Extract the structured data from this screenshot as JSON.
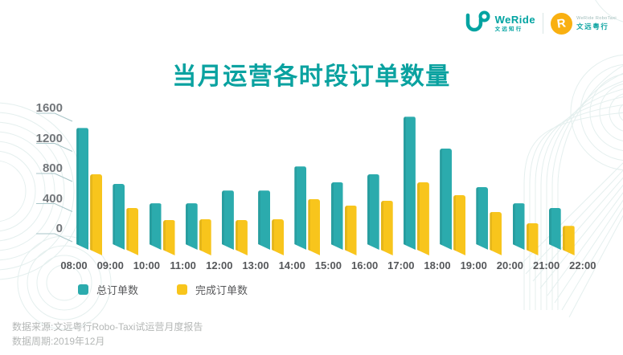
{
  "header": {
    "weride_logo": {
      "name": "WeRide",
      "cn": "文远知行"
    },
    "robotaxi_logo": {
      "monogram": "R",
      "line1": "WeRide RoboTaxi",
      "cn": "文远粤行"
    }
  },
  "title": "当月运营各时段订单数量",
  "chart_data": {
    "type": "bar",
    "title": "当月运营各时段订单数量",
    "note": "each pair of bars spans the hour between consecutive boundary labels; stylized 3D ppt bars",
    "x_boundary_labels": [
      "08:00",
      "09:00",
      "10:00",
      "11:00",
      "12:00",
      "13:00",
      "14:00",
      "15:00",
      "16:00",
      "17:00",
      "18:00",
      "19:00",
      "20:00",
      "21:00",
      "22:00"
    ],
    "series": [
      {
        "name": "总订单数",
        "color": "#2babad",
        "values": [
          1340,
          600,
          340,
          340,
          510,
          510,
          830,
          620,
          730,
          1490,
          1070,
          560,
          340,
          280
        ]
      },
      {
        "name": "完成订单数",
        "color": "#f8c51c",
        "values": [
          730,
          280,
          120,
          130,
          120,
          130,
          395,
          310,
          375,
          620,
          450,
          225,
          80,
          40
        ]
      }
    ],
    "yticks": [
      0,
      400,
      800,
      1200,
      1600
    ],
    "ylim": [
      0,
      1600
    ],
    "grid": false,
    "legend_position": "bottom-left"
  },
  "footer": {
    "source": "数据来源:文远粤行Robo-Taxi试运营月度报告",
    "period": "数据周期:2019年12月"
  },
  "colors": {
    "accent_teal": "#0aa2a0",
    "bar_teal": "#2babad",
    "bar_yellow": "#f8c51c",
    "axis_text": "#72767a",
    "x_text": "#55575a",
    "tick_line": "#a9c6c9",
    "deco_line": "#e4efee",
    "footer_text": "#b4b7b6",
    "logo_yellow": "#f9b011"
  }
}
